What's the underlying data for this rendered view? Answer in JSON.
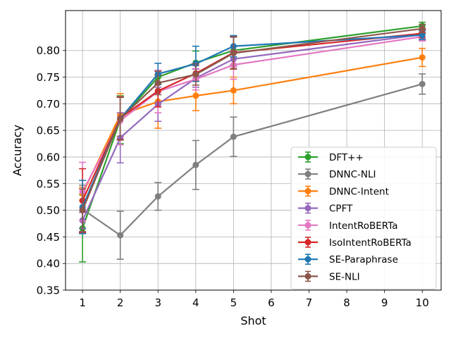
{
  "chart_data": {
    "type": "line",
    "title": "",
    "xlabel": "Shot",
    "ylabel": "Accuracy",
    "x": [
      1,
      2,
      3,
      4,
      5,
      10
    ],
    "xticks": [
      1,
      2,
      3,
      4,
      5,
      6,
      7,
      8,
      9,
      10
    ],
    "xlim": [
      0.55,
      10.5
    ],
    "ylim": [
      0.35,
      0.875
    ],
    "yticks": [
      0.35,
      0.4,
      0.45,
      0.5,
      0.55,
      0.6,
      0.65,
      0.7,
      0.75,
      0.8
    ],
    "ytick_labels": [
      "0.35",
      "0.40",
      "0.45",
      "0.50",
      "0.55",
      "0.60",
      "0.65",
      "0.70",
      "0.75",
      "0.80"
    ],
    "grid": true,
    "legend_position": "lower-right",
    "series": [
      {
        "name": "DFT++",
        "color": "#2ca02c",
        "values": [
          0.466,
          0.67,
          0.75,
          0.777,
          0.8,
          0.846
        ],
        "errors": [
          0.063,
          0.045,
          0.012,
          0.022,
          0.027,
          0.007
        ]
      },
      {
        "name": "DNNC-NLI",
        "color": "#7f7f7f",
        "values": [
          0.502,
          0.453,
          0.526,
          0.585,
          0.638,
          0.737
        ],
        "errors": [
          0.045,
          0.045,
          0.026,
          0.046,
          0.037,
          0.019
        ]
      },
      {
        "name": "DNNC-Intent",
        "color": "#ff7f0e",
        "values": [
          0.531,
          0.679,
          0.704,
          0.715,
          0.725,
          0.787
        ],
        "errors": [
          0.012,
          0.04,
          0.05,
          0.028,
          0.025,
          0.017
        ]
      },
      {
        "name": "CPFT",
        "color": "#9467bd",
        "values": [
          0.481,
          0.636,
          0.699,
          0.748,
          0.784,
          0.83
        ],
        "errors": [
          0.015,
          0.047,
          0.032,
          0.017,
          0.014,
          0.011
        ]
      },
      {
        "name": "IntentRoBERTa",
        "color": "#e377c2",
        "values": [
          0.535,
          0.668,
          0.723,
          0.746,
          0.773,
          0.826
        ],
        "errors": [
          0.055,
          0.045,
          0.04,
          0.02,
          0.027,
          0.008
        ]
      },
      {
        "name": "IsoIntentRoBERTa",
        "color": "#d62728",
        "values": [
          0.518,
          0.673,
          0.724,
          0.757,
          0.796,
          0.832
        ],
        "errors": [
          0.06,
          0.04,
          0.03,
          0.015,
          0.03,
          0.008
        ]
      },
      {
        "name": "SE-Paraphrase",
        "color": "#1f77b4",
        "values": [
          0.506,
          0.672,
          0.756,
          0.775,
          0.808,
          0.829
        ],
        "errors": [
          0.05,
          0.04,
          0.02,
          0.033,
          0.02,
          0.008
        ]
      },
      {
        "name": "SE-NLI",
        "color": "#8c564b",
        "values": [
          0.5,
          0.672,
          0.739,
          0.755,
          0.795,
          0.841
        ],
        "errors": [
          0.04,
          0.04,
          0.022,
          0.02,
          0.03,
          0.008
        ]
      }
    ]
  }
}
